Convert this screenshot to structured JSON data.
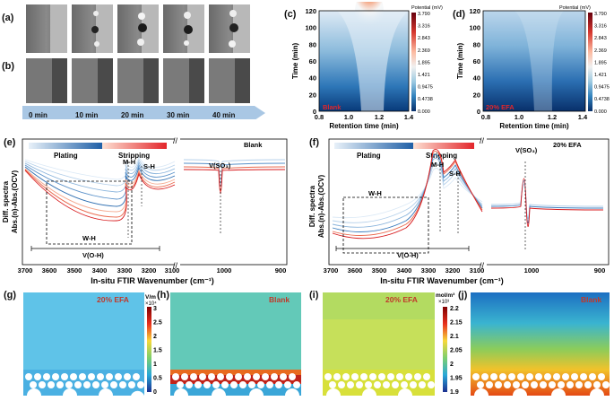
{
  "panels": {
    "a": "(a)",
    "b": "(b)",
    "c": "(c)",
    "d": "(d)",
    "e": "(e)",
    "f": "(f)",
    "g": "(g)",
    "h": "(h)",
    "i": "(i)",
    "j": "(j)"
  },
  "timeline": {
    "labels": [
      "0 min",
      "10 min",
      "20 min",
      "30 min",
      "40 min"
    ]
  },
  "heatmap": {
    "y_label": "Time (min)",
    "x_label": "Retention time (min)",
    "y_ticks": [
      "0",
      "20",
      "40",
      "60",
      "80",
      "100",
      "120"
    ],
    "x_ticks": [
      "0.8",
      "1.0",
      "1.2",
      "1.4"
    ],
    "colorbar_title": "Potential (mV)",
    "colorbar_ticks": [
      "3.790",
      "3.316",
      "2.843",
      "2.369",
      "1.895",
      "1.421",
      "0.9475",
      "0.4738",
      "0.000"
    ],
    "c_tag": "Blank",
    "d_tag": "20% EFA"
  },
  "ftir": {
    "y_label_1": "Diff. spectra",
    "y_label_2": "Abs.(n)-Abs.(OCV)",
    "x_label": "In-situ FTIR Wavenumber (cm⁻¹)",
    "x_ticks_left": [
      "3700",
      "3600",
      "3500",
      "3400",
      "3300",
      "3200",
      "3100"
    ],
    "x_ticks_right": [
      "1000",
      "900"
    ],
    "plating": "Plating",
    "stripping": "Stripping",
    "mh": "M-H",
    "sh": "S-H",
    "wh": "W-H",
    "voh": "V(O-H)",
    "vso3": "V(SO₃)",
    "e_tag": "Blank",
    "f_tag": "20% EFA"
  },
  "field": {
    "g_tag": "20% EFA",
    "h_tag": "Blank",
    "i_tag": "20% EFA",
    "j_tag": "Blank",
    "e_unit_1": "V/m",
    "e_unit_2": "×10⁴",
    "e_ticks": [
      "3",
      "2.5",
      "2",
      "1.5",
      "1",
      "0.5",
      "0"
    ],
    "c_unit_1": "mol/m³",
    "c_unit_2": "×10³",
    "c_ticks": [
      "2.2",
      "2.15",
      "2.1",
      "2.05",
      "2",
      "1.95",
      "1.9"
    ]
  },
  "colors": {
    "accent_red": "#c0392b",
    "blue_dark": "#08306b",
    "arrow_blue": "#a9c7e4"
  }
}
